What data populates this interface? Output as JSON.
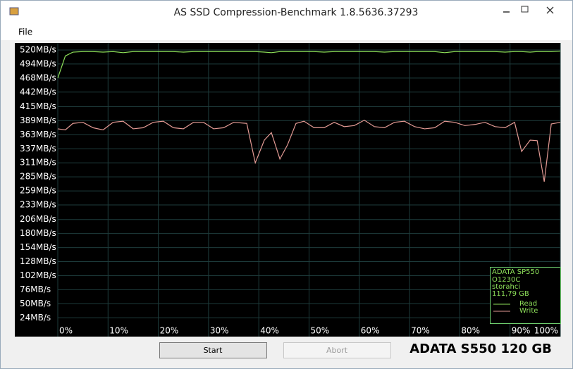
{
  "window": {
    "title": "AS SSD Compression-Benchmark 1.8.5636.37293",
    "menu": [
      "File"
    ],
    "buttons": [
      "Start",
      "Abort"
    ],
    "drive_label": "ADATA S550 120 GB"
  },
  "device_info": [
    "ADATA SP550",
    "O1230C",
    "storahci",
    "111,79 GB"
  ],
  "chart_data": {
    "type": "line",
    "x": [
      0,
      1.5,
      3,
      5,
      7,
      9,
      11,
      13,
      15,
      17,
      19,
      21,
      23,
      25,
      27,
      29,
      31,
      33,
      35,
      37.6,
      39.3,
      41.1,
      42.5,
      44.2,
      45.7,
      47.4,
      49,
      51,
      53,
      55,
      57,
      59,
      61,
      63,
      65,
      67,
      69,
      71,
      73,
      75,
      77,
      79,
      81,
      83,
      85,
      87,
      89,
      90.9,
      92.3,
      94,
      95.4,
      96.8,
      98.2,
      100
    ],
    "series": [
      {
        "name": "Read",
        "color": "#8ee05a",
        "values": [
          468,
          509,
          516,
          517,
          517,
          516,
          517,
          515,
          517,
          517,
          517,
          517,
          517,
          516,
          517,
          517,
          517,
          517,
          517,
          517,
          517,
          516,
          515,
          517,
          517,
          517,
          517,
          517,
          516,
          517,
          517,
          517,
          517,
          517,
          516,
          517,
          517,
          517,
          517,
          517,
          515,
          517,
          517,
          517,
          517,
          517,
          516,
          517,
          517,
          516,
          517,
          517,
          517,
          518
        ]
      },
      {
        "name": "Write",
        "color": "#e39a94",
        "values": [
          374,
          372,
          384,
          386,
          376,
          372,
          386,
          388,
          374,
          376,
          386,
          388,
          376,
          374,
          386,
          386,
          374,
          376,
          386,
          384,
          311,
          353,
          367,
          318,
          344,
          384,
          388,
          376,
          376,
          386,
          378,
          380,
          390,
          378,
          376,
          386,
          388,
          378,
          374,
          376,
          388,
          386,
          380,
          382,
          386,
          378,
          376,
          386,
          332,
          353,
          352,
          276,
          383,
          386
        ]
      }
    ],
    "xlim": [
      0,
      100
    ],
    "xticks": [
      {
        "value": 0,
        "label": "0%"
      },
      {
        "value": 10,
        "label": "10%"
      },
      {
        "value": 20,
        "label": "20%"
      },
      {
        "value": 30,
        "label": "30%"
      },
      {
        "value": 40,
        "label": "40%"
      },
      {
        "value": 50,
        "label": "50%"
      },
      {
        "value": 60,
        "label": "60%"
      },
      {
        "value": 70,
        "label": "70%"
      },
      {
        "value": 80,
        "label": "80%"
      },
      {
        "value": 90,
        "label": "90%"
      },
      {
        "value": 100,
        "label": "100%"
      }
    ],
    "ylim": [
      10,
      533
    ],
    "yticks": [
      {
        "value": 520,
        "label": "520MB/s"
      },
      {
        "value": 494,
        "label": "494MB/s"
      },
      {
        "value": 468,
        "label": "468MB/s"
      },
      {
        "value": 442,
        "label": "442MB/s"
      },
      {
        "value": 415,
        "label": "415MB/s"
      },
      {
        "value": 389,
        "label": "389MB/s"
      },
      {
        "value": 363,
        "label": "363MB/s"
      },
      {
        "value": 337,
        "label": "337MB/s"
      },
      {
        "value": 311,
        "label": "311MB/s"
      },
      {
        "value": 285,
        "label": "285MB/s"
      },
      {
        "value": 259,
        "label": "259MB/s"
      },
      {
        "value": 233,
        "label": "233MB/s"
      },
      {
        "value": 206,
        "label": "206MB/s"
      },
      {
        "value": 180,
        "label": "180MB/s"
      },
      {
        "value": 154,
        "label": "154MB/s"
      },
      {
        "value": 128,
        "label": "128MB/s"
      },
      {
        "value": 102,
        "label": "102MB/s"
      },
      {
        "value": 76,
        "label": "76MB/s"
      },
      {
        "value": 50,
        "label": "50MB/s"
      },
      {
        "value": 24,
        "label": "24MB/s"
      }
    ],
    "grid": true,
    "legend": "bottom-right"
  }
}
